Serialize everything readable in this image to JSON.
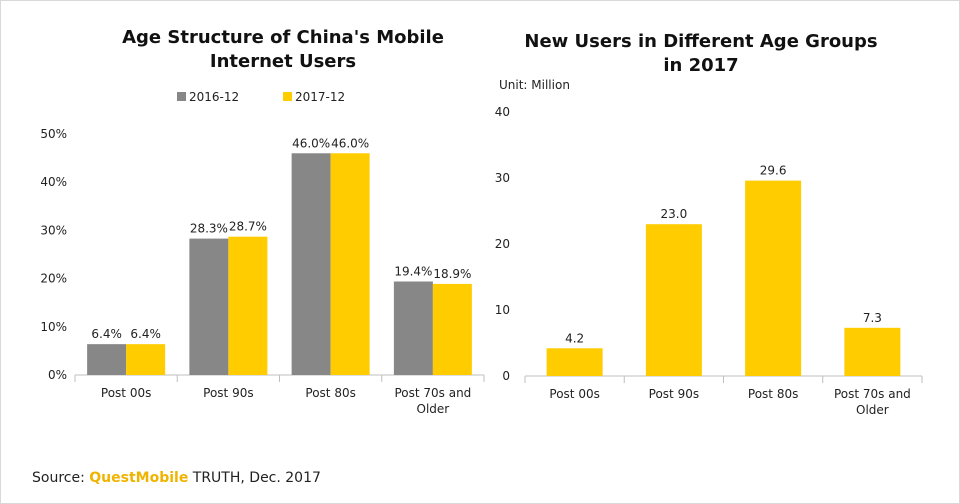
{
  "colors": {
    "gray": "#878787",
    "yellow": "#ffcc00",
    "axis": "#bfbfbf"
  },
  "chart_data": [
    {
      "type": "bar",
      "title_lines": [
        "Age Structure of China's Mobile",
        "Internet Users"
      ],
      "categories": [
        [
          "Post 00s"
        ],
        [
          "Post 90s"
        ],
        [
          "Post 80s"
        ],
        [
          "Post 70s and",
          "Older"
        ]
      ],
      "y_ticks": [
        "0%",
        "10%",
        "20%",
        "30%",
        "40%",
        "50%"
      ],
      "ylim": [
        0,
        50
      ],
      "series": [
        {
          "name": "2016-12",
          "color": "#878787",
          "values": [
            6.4,
            28.3,
            46.0,
            19.4
          ],
          "labels": [
            "6.4%",
            "28.3%",
            "46.0%",
            "19.4%"
          ]
        },
        {
          "name": "2017-12",
          "color": "#ffcc00",
          "values": [
            6.4,
            28.7,
            46.0,
            18.9
          ],
          "labels": [
            "6.4%",
            "28.7%",
            "46.0%",
            "18.9%"
          ]
        }
      ],
      "legend_position": "top",
      "grid": false
    },
    {
      "type": "bar",
      "title_lines": [
        "New Users in Different Age Groups",
        "in 2017"
      ],
      "unit": "Unit: Million",
      "categories": [
        [
          "Post 00s"
        ],
        [
          "Post 90s"
        ],
        [
          "Post 80s"
        ],
        [
          "Post 70s and",
          "Older"
        ]
      ],
      "y_ticks": [
        "0",
        "10",
        "20",
        "30",
        "40"
      ],
      "ylim": [
        0,
        40
      ],
      "values": [
        4.2,
        23.0,
        29.6,
        7.3
      ],
      "labels": [
        "4.2",
        "23.0",
        "29.6",
        "7.3"
      ],
      "grid": false
    }
  ],
  "source": {
    "prefix": "Source: ",
    "brand": "QuestMobile",
    "suffix": " TRUTH, Dec. 2017"
  }
}
